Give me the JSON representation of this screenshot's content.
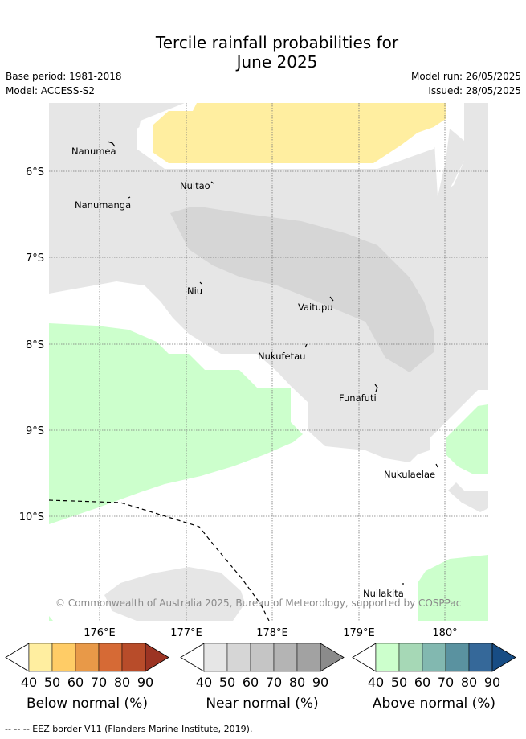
{
  "title_line1": "Tercile rainfall probabilities for",
  "title_line2": "June 2025",
  "base_period": "Base period: 1981-2018",
  "model": "Model: ACCESS-S2",
  "model_run": "Model run: 26/05/2025",
  "issued": "Issued: 28/05/2025",
  "copyright": "© Commonwealth of Australia 2025, Bureau of Meteorology, supported by COSPPac",
  "lat_labels": [
    "6°S",
    "7°S",
    "8°S",
    "9°S",
    "10°S"
  ],
  "lon_labels": [
    "176°E",
    "177°E",
    "178°E",
    "179°E",
    "180°"
  ],
  "places": [
    "Nanumea",
    "Nuitao",
    "Nanumanga",
    "Niu",
    "Vaitupu",
    "Nukufetau",
    "Funafuti",
    "Nukulaelae",
    "Nuilakita"
  ],
  "colorbars": [
    {
      "label": "Below normal (%)",
      "ticks": [
        "40",
        "50",
        "60",
        "70",
        "80",
        "90"
      ],
      "colors": [
        "#ffeea0",
        "#ffcc66",
        "#e89948",
        "#d66a35",
        "#b84c2a",
        "#9c3423"
      ]
    },
    {
      "label": "Near normal (%)",
      "ticks": [
        "40",
        "50",
        "60",
        "70",
        "80",
        "90"
      ],
      "colors": [
        "#e6e6e6",
        "#d6d6d6",
        "#c5c5c5",
        "#b4b4b4",
        "#a2a2a2",
        "#8b8b8b"
      ]
    },
    {
      "label": "Above normal (%)",
      "ticks": [
        "40",
        "50",
        "60",
        "70",
        "80",
        "90"
      ],
      "colors": [
        "#ccffcc",
        "#a6d8b6",
        "#82b8b0",
        "#5a92a0",
        "#356899",
        "#174c84"
      ]
    }
  ],
  "footer": "-- -- -- EEZ border V11 (Flanders Marine Institute, 2019)."
}
